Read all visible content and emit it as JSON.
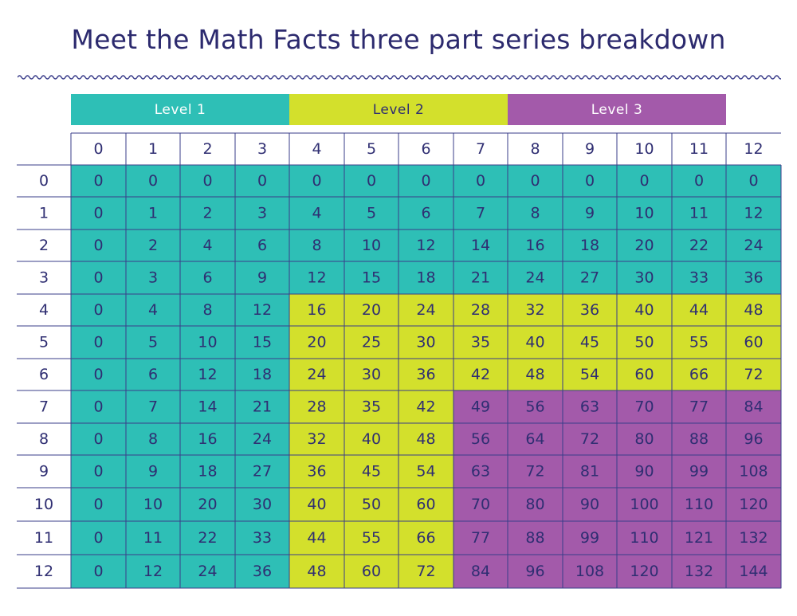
{
  "title": "Meet the Math Facts three part series breakdown",
  "colors": {
    "level1": "#2ebfb6",
    "level2": "#d3e02c",
    "level3": "#a35aaa",
    "text": "#2f2e72",
    "grid": "#3a3d8a",
    "title": "#2c2a6e"
  },
  "levels": [
    {
      "label": "Level 1",
      "text_color": "#ffffff"
    },
    {
      "label": "Level 2",
      "text_color": "#2f2e72"
    },
    {
      "label": "Level 3",
      "text_color": "#ffffff"
    }
  ],
  "chart_data": {
    "type": "table",
    "title": "Meet the Math Facts three part series breakdown",
    "column_headers": [
      "0",
      "1",
      "2",
      "3",
      "4",
      "5",
      "6",
      "7",
      "8",
      "9",
      "10",
      "11",
      "12"
    ],
    "row_headers": [
      "0",
      "1",
      "2",
      "3",
      "4",
      "5",
      "6",
      "7",
      "8",
      "9",
      "10",
      "11",
      "12"
    ],
    "cells": [
      [
        "0",
        "0",
        "0",
        "0",
        "0",
        "0",
        "0",
        "0",
        "0",
        "0",
        "0",
        "0",
        "0"
      ],
      [
        "0",
        "1",
        "2",
        "3",
        "4",
        "5",
        "6",
        "7",
        "8",
        "9",
        "10",
        "11",
        "12"
      ],
      [
        "0",
        "2",
        "4",
        "6",
        "8",
        "10",
        "12",
        "14",
        "16",
        "18",
        "20",
        "22",
        "24"
      ],
      [
        "0",
        "3",
        "6",
        "9",
        "12",
        "15",
        "18",
        "21",
        "24",
        "27",
        "30",
        "33",
        "36"
      ],
      [
        "0",
        "4",
        "8",
        "12",
        "16",
        "20",
        "24",
        "28",
        "32",
        "36",
        "40",
        "44",
        "48"
      ],
      [
        "0",
        "5",
        "10",
        "15",
        "20",
        "25",
        "30",
        "35",
        "40",
        "45",
        "50",
        "55",
        "60"
      ],
      [
        "0",
        "6",
        "12",
        "18",
        "24",
        "30",
        "36",
        "42",
        "48",
        "54",
        "60",
        "66",
        "72"
      ],
      [
        "0",
        "7",
        "14",
        "21",
        "28",
        "35",
        "42",
        "49",
        "56",
        "63",
        "70",
        "77",
        "84"
      ],
      [
        "0",
        "8",
        "16",
        "24",
        "32",
        "40",
        "48",
        "56",
        "64",
        "72",
        "80",
        "88",
        "96"
      ],
      [
        "0",
        "9",
        "18",
        "27",
        "36",
        "45",
        "54",
        "63",
        "72",
        "81",
        "90",
        "99",
        "108"
      ],
      [
        "0",
        "10",
        "20",
        "30",
        "40",
        "50",
        "60",
        "70",
        "80",
        "90",
        "100",
        "110",
        "120"
      ],
      [
        "0",
        "11",
        "22",
        "33",
        "44",
        "55",
        "66",
        "77",
        "88",
        "99",
        "110",
        "121",
        "132"
      ],
      [
        "0",
        "12",
        "24",
        "36",
        "48",
        "60",
        "72",
        "84",
        "96",
        "108",
        "120",
        "132",
        "144"
      ]
    ],
    "cell_level": [
      [
        1,
        1,
        1,
        1,
        1,
        1,
        1,
        1,
        1,
        1,
        1,
        1,
        1
      ],
      [
        1,
        1,
        1,
        1,
        1,
        1,
        1,
        1,
        1,
        1,
        1,
        1,
        1
      ],
      [
        1,
        1,
        1,
        1,
        1,
        1,
        1,
        1,
        1,
        1,
        1,
        1,
        1
      ],
      [
        1,
        1,
        1,
        1,
        1,
        1,
        1,
        1,
        1,
        1,
        1,
        1,
        1
      ],
      [
        1,
        1,
        1,
        1,
        2,
        2,
        2,
        2,
        2,
        2,
        2,
        2,
        2
      ],
      [
        1,
        1,
        1,
        1,
        2,
        2,
        2,
        2,
        2,
        2,
        2,
        2,
        2
      ],
      [
        1,
        1,
        1,
        1,
        2,
        2,
        2,
        2,
        2,
        2,
        2,
        2,
        2
      ],
      [
        1,
        1,
        1,
        1,
        2,
        2,
        2,
        3,
        3,
        3,
        3,
        3,
        3
      ],
      [
        1,
        1,
        1,
        1,
        2,
        2,
        2,
        3,
        3,
        3,
        3,
        3,
        3
      ],
      [
        1,
        1,
        1,
        1,
        2,
        2,
        2,
        3,
        3,
        3,
        3,
        3,
        3
      ],
      [
        1,
        1,
        1,
        1,
        2,
        2,
        2,
        3,
        3,
        3,
        3,
        3,
        3
      ],
      [
        1,
        1,
        1,
        1,
        2,
        2,
        2,
        3,
        3,
        3,
        3,
        3,
        3
      ],
      [
        1,
        1,
        1,
        1,
        2,
        2,
        2,
        3,
        3,
        3,
        3,
        3,
        3
      ]
    ]
  }
}
